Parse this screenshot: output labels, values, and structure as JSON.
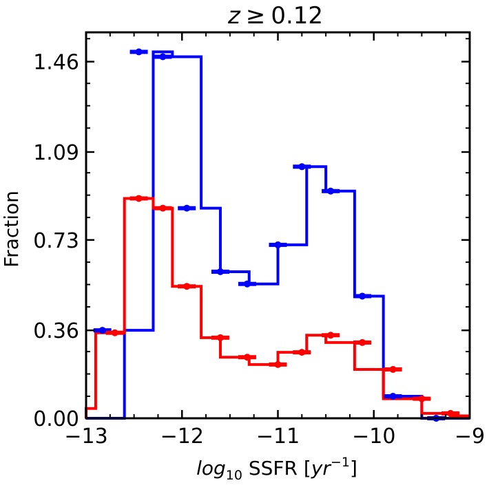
{
  "chart_data": {
    "type": "step-histogram",
    "title": {
      "var": "z",
      "op": "≥",
      "value": "0.12"
    },
    "xlabel": {
      "log": "log",
      "sub": "10",
      "mid": " SSFR [",
      "unit": "yr",
      "sup": "−1",
      "end": "]"
    },
    "ylabel": "Fraction",
    "xlim": [
      -13,
      -9
    ],
    "ylim": [
      0,
      1.58
    ],
    "xticks": [
      -13,
      -12,
      -11,
      -10,
      -9
    ],
    "xtick_labels": [
      "−13",
      "−12",
      "−11",
      "−10",
      "−9"
    ],
    "yticks": [
      0.0,
      0.36,
      0.73,
      1.09,
      1.46
    ],
    "ytick_labels": [
      "0.00",
      "0.36",
      "0.73",
      "1.09",
      "1.46"
    ],
    "bin_edges": [
      -13.0,
      -12.67,
      -12.33,
      -12.0,
      -11.67,
      -11.33,
      -11.0,
      -10.67,
      -10.33,
      -10.0,
      -9.67,
      -9.33,
      -9.0
    ],
    "series": [
      {
        "name": "blue",
        "color": "#0000ff",
        "edges": [
          -13.0,
          -12.6,
          -12.3,
          -12.1,
          -11.8,
          -11.6,
          -11.3,
          -11.0,
          -10.7,
          -10.5,
          -10.2,
          -9.9,
          -9.5,
          -9.2,
          -9.0
        ],
        "values": [
          0.0,
          0.36,
          1.5,
          1.48,
          0.86,
          0.6,
          0.55,
          0.71,
          1.03,
          0.93,
          0.5,
          0.09,
          0.0,
          0.0
        ],
        "markers_x": [
          -12.83,
          -12.45,
          -12.2,
          -11.95,
          -11.6,
          -11.32,
          -11.0,
          -10.75,
          -10.45,
          -10.12,
          -9.8,
          -9.35
        ],
        "markers_y": [
          0.36,
          1.5,
          1.48,
          0.86,
          0.6,
          0.55,
          0.71,
          1.03,
          0.93,
          0.5,
          0.09,
          0.0
        ]
      },
      {
        "name": "red",
        "color": "#ff0000",
        "edges": [
          -13.0,
          -12.9,
          -12.6,
          -12.3,
          -12.1,
          -11.8,
          -11.6,
          -11.3,
          -11.0,
          -10.7,
          -10.5,
          -10.2,
          -9.9,
          -9.5,
          -9.2,
          -9.0
        ],
        "values": [
          0.04,
          0.35,
          0.9,
          0.86,
          0.54,
          0.33,
          0.25,
          0.22,
          0.27,
          0.34,
          0.31,
          0.2,
          0.08,
          0.02,
          0.01
        ],
        "markers_x": [
          -12.7,
          -12.45,
          -12.2,
          -11.95,
          -11.6,
          -11.32,
          -11.0,
          -10.75,
          -10.45,
          -10.12,
          -9.8,
          -9.5,
          -9.2
        ],
        "markers_y": [
          0.35,
          0.9,
          0.86,
          0.54,
          0.33,
          0.25,
          0.22,
          0.27,
          0.34,
          0.31,
          0.2,
          0.08,
          0.02
        ]
      }
    ]
  }
}
